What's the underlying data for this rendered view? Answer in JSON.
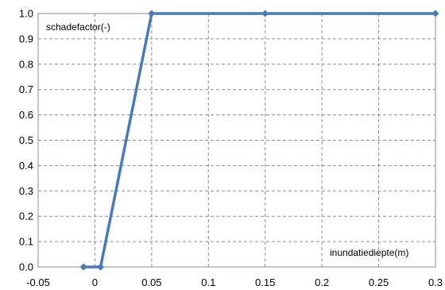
{
  "chart_data": {
    "type": "line",
    "title": "",
    "ylabel": "schadefactor(-)",
    "xlabel": "inundatiediepte(m)",
    "xlim": [
      -0.05,
      0.3
    ],
    "ylim": [
      0.0,
      1.0
    ],
    "x_ticks": [
      -0.05,
      0,
      0.05,
      0.1,
      0.15,
      0.2,
      0.25,
      0.3
    ],
    "x_tick_labels": [
      "-0.05",
      "0",
      "0.05",
      "0.1",
      "0.15",
      "0.2",
      "0.25",
      "0.3"
    ],
    "y_ticks": [
      0.0,
      0.1,
      0.2,
      0.3,
      0.4,
      0.5,
      0.6,
      0.7,
      0.8,
      0.9,
      1.0
    ],
    "y_tick_labels": [
      "0.0",
      "0.1",
      "0.2",
      "0.3",
      "0.4",
      "0.5",
      "0.6",
      "0.7",
      "0.8",
      "0.9",
      "1.0"
    ],
    "grid": true,
    "legend": "none",
    "series": [
      {
        "color": "#4a7ab5",
        "marker": "diamond",
        "points": [
          {
            "x": -0.01,
            "y": 0.0
          },
          {
            "x": 0.005,
            "y": 0.0
          },
          {
            "x": 0.05,
            "y": 1.0
          },
          {
            "x": 0.15,
            "y": 1.0
          },
          {
            "x": 0.3,
            "y": 1.0
          }
        ]
      }
    ]
  }
}
